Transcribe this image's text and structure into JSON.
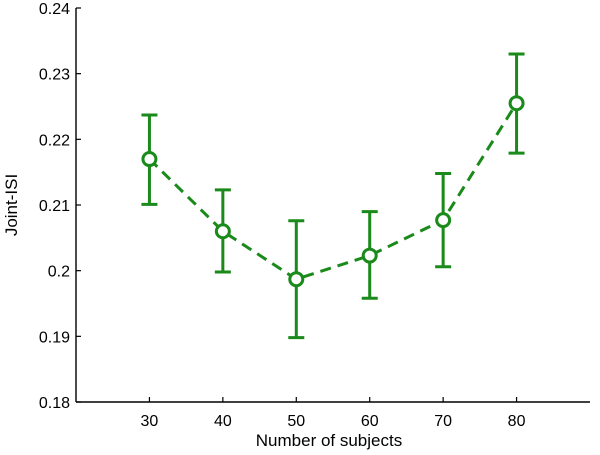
{
  "chart_data": {
    "type": "line",
    "title": "",
    "xlabel": "Number of subjects",
    "ylabel": "Joint-ISI",
    "xlim": [
      20,
      90
    ],
    "ylim": [
      0.18,
      0.24
    ],
    "x_ticks": [
      30,
      40,
      50,
      60,
      70,
      80
    ],
    "y_ticks": [
      0.18,
      0.19,
      0.2,
      0.21,
      0.22,
      0.23,
      0.24
    ],
    "x_tick_labels": [
      "30",
      "40",
      "50",
      "60",
      "70",
      "80"
    ],
    "y_tick_labels": [
      "0.18",
      "0.19",
      "0.2",
      "0.21",
      "0.22",
      "0.23",
      "0.24"
    ],
    "grid": false,
    "legend": "none",
    "series": [
      {
        "x": [
          30,
          40,
          50,
          60,
          70,
          80
        ],
        "y": [
          0.217,
          0.206,
          0.1987,
          0.2023,
          0.2077,
          0.2255
        ],
        "err_low": [
          0.2101,
          0.1998,
          0.1898,
          0.1958,
          0.2006,
          0.2179
        ],
        "err_high": [
          0.2237,
          0.2123,
          0.2076,
          0.209,
          0.2148,
          0.233
        ],
        "color": "#1a8a1a",
        "line_style": "dashed",
        "marker": "circle"
      }
    ]
  }
}
